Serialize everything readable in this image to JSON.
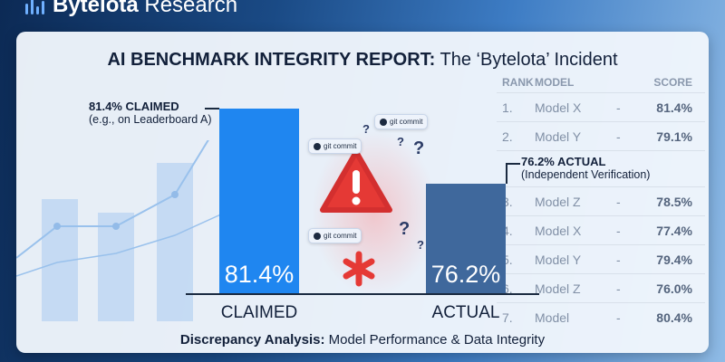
{
  "brand": {
    "name_bold": "Bytelota",
    "name_rest": "Research"
  },
  "title": {
    "bold": "AI BENCHMARK INTEGRITY REPORT:",
    "rest": "The ‘Bytelota’ Incident"
  },
  "claimed": {
    "annotation": "81.4% CLAIMED",
    "sub": "(e.g., on Leaderboard A)",
    "value_label": "81.4%",
    "label": "CLAIMED",
    "value": 81.4,
    "color": "#1f86f0"
  },
  "actual": {
    "annotation": "76.2% ACTUAL",
    "sub": "(Independent Verification)",
    "value_label": "76.2%",
    "label": "ACTUAL",
    "value": 76.2,
    "color": "#3f689c"
  },
  "git_tag": "git commit",
  "table": {
    "headers": [
      "RANK",
      "MODEL",
      "SCORE"
    ],
    "rows": [
      [
        "1.",
        "Model X",
        "-",
        "81.4%"
      ],
      [
        "2.",
        "Model Y",
        "-",
        "79.1%"
      ],
      [
        "3.",
        "Model Z",
        "-",
        "78.5%"
      ],
      [
        "4.",
        "Model X",
        "-",
        "77.4%"
      ],
      [
        "5.",
        "Model Y",
        "-",
        "79.4%"
      ],
      [
        "6.",
        "Model Z",
        "-",
        "76.0%"
      ],
      [
        "7.",
        "Model",
        "-",
        "80.4%"
      ]
    ]
  },
  "footer": {
    "bold": "Discrepancy Analysis:",
    "rest": "Model Performance & Data Integrity"
  }
}
